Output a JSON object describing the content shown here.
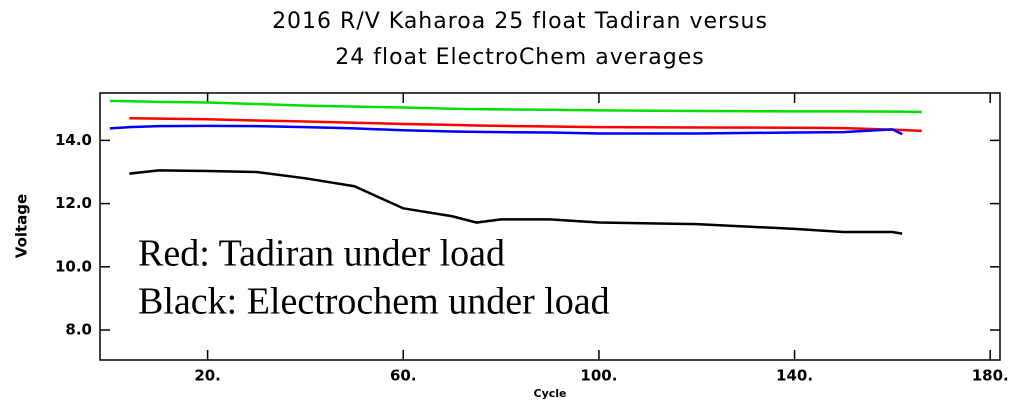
{
  "chart_data": {
    "type": "line",
    "title": "2016 R/V Kaharoa 25 float Tadiran versus",
    "subtitle": "24 float ElectroChem averages",
    "y_label": "Voltage",
    "x_label": "Cycle",
    "annotations": [
      "Red: Tadiran under load",
      "Black: Electrochem under load"
    ],
    "x": [
      0,
      4,
      10,
      20,
      30,
      40,
      50,
      60,
      70,
      75,
      80,
      90,
      100,
      120,
      140,
      150,
      160,
      162,
      166
    ],
    "series": [
      {
        "color": "#00e000",
        "values": [
          15.25,
          15.24,
          15.22,
          15.2,
          15.15,
          15.1,
          15.07,
          15.04,
          15.0,
          14.99,
          14.98,
          14.97,
          14.95,
          14.93,
          14.92,
          14.92,
          14.91,
          14.91,
          14.9
        ]
      },
      {
        "color": "#ff0000",
        "values": [
          null,
          14.7,
          14.69,
          14.67,
          14.63,
          14.6,
          14.56,
          14.52,
          14.49,
          14.47,
          14.46,
          14.44,
          14.42,
          14.41,
          14.4,
          14.39,
          14.34,
          14.33,
          14.3
        ]
      },
      {
        "color": "#0000ff",
        "values": [
          14.38,
          14.42,
          14.45,
          14.46,
          14.45,
          14.42,
          14.38,
          14.32,
          14.28,
          14.27,
          14.26,
          14.25,
          14.22,
          14.22,
          14.25,
          14.26,
          14.35,
          14.2,
          null
        ]
      },
      {
        "color": "#000000",
        "values": [
          null,
          12.95,
          13.05,
          13.03,
          13.0,
          12.8,
          12.55,
          11.85,
          11.6,
          11.4,
          11.5,
          11.5,
          11.4,
          11.35,
          11.2,
          11.1,
          11.1,
          11.05,
          null
        ]
      }
    ],
    "xlim": [
      -2,
      182
    ],
    "xticks": [
      {
        "value": 20,
        "label": "20."
      },
      {
        "value": 60,
        "label": "60."
      },
      {
        "value": 100,
        "label": "100."
      },
      {
        "value": 140,
        "label": "140."
      },
      {
        "value": 180,
        "label": "180."
      }
    ],
    "ylim": [
      7.05,
      15.5
    ],
    "yticks": [
      {
        "value": 8,
        "label": "8.0"
      },
      {
        "value": 10,
        "label": "10.0"
      },
      {
        "value": 12,
        "label": "12.0"
      },
      {
        "value": 14,
        "label": "14.0"
      }
    ]
  }
}
